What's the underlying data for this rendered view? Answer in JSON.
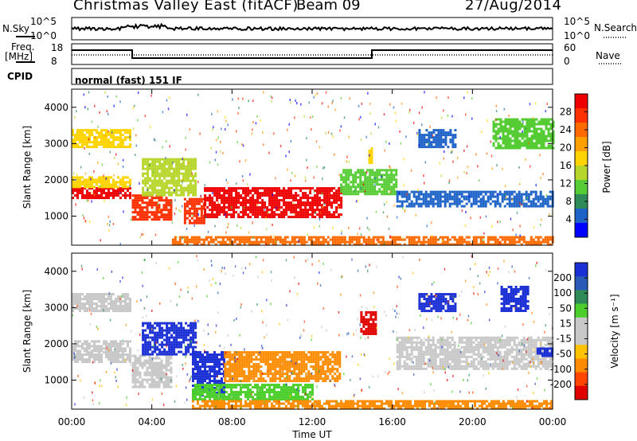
{
  "header": {
    "title": "Christmas Valley East (fitACF)",
    "beam": "Beam 09",
    "date": "27/Aug/2014"
  },
  "strip": {
    "nsky_label": "N.Sky",
    "nsearch_label": "N.Search",
    "nsky_ticks": [
      "10^5",
      "10^0"
    ],
    "freq_label_1": "Freq.",
    "freq_label_2": "[MHz]",
    "freq_ticks": [
      "18",
      "8"
    ],
    "nave_label": "Nave",
    "nave_ticks": [
      "60",
      "0"
    ],
    "cpid_label": "CPID",
    "cpid_value": "normal (fast) 151 IF"
  },
  "chart_data": [
    {
      "type": "heatmap",
      "name": "power",
      "xlabel": "",
      "ylabel": "Slant Range [km]",
      "xlim": [
        0,
        24
      ],
      "ylim": [
        200,
        4500
      ],
      "yticks": [
        "1000",
        "2000",
        "3000",
        "4000"
      ],
      "colorbar": {
        "label": "Power [dB]",
        "ticks": [
          "4",
          "8",
          "12",
          "16",
          "20",
          "24",
          "28"
        ],
        "colors": [
          "#0000ff",
          "#1e64c8",
          "#2e8b57",
          "#55cc33",
          "#b6d62b",
          "#ffd400",
          "#ffa000",
          "#ff6a00",
          "#ff3000",
          "#ee0000"
        ]
      },
      "regions": [
        {
          "t": [
            0.0,
            2.9
          ],
          "r": [
            1500,
            1800
          ],
          "level": 0.95
        },
        {
          "t": [
            0.0,
            2.9
          ],
          "r": [
            1800,
            2100
          ],
          "level": 0.55
        },
        {
          "t": [
            0.0,
            2.9
          ],
          "r": [
            2900,
            3400
          ],
          "level": 0.5
        },
        {
          "t": [
            3.0,
            5.0
          ],
          "r": [
            900,
            1600
          ],
          "level": 0.85
        },
        {
          "t": [
            3.5,
            6.2
          ],
          "r": [
            1600,
            2600
          ],
          "level": 0.4
        },
        {
          "t": [
            5.6,
            6.6
          ],
          "r": [
            800,
            1500
          ],
          "level": 0.9
        },
        {
          "t": [
            6.6,
            13.4
          ],
          "r": [
            1000,
            1800
          ],
          "level": 0.95
        },
        {
          "t": [
            13.4,
            16.2
          ],
          "r": [
            1600,
            2300
          ],
          "level": 0.35
        },
        {
          "t": [
            14.8,
            15.0
          ],
          "r": [
            2400,
            2900
          ],
          "level": 0.6
        },
        {
          "t": [
            16.2,
            24.0
          ],
          "r": [
            1300,
            1700
          ],
          "level": 0.15
        },
        {
          "t": [
            17.3,
            19.2
          ],
          "r": [
            2900,
            3400
          ],
          "level": 0.1
        },
        {
          "t": [
            21.0,
            24.0
          ],
          "r": [
            2900,
            3700
          ],
          "level": 0.3
        },
        {
          "t": [
            5.0,
            24.0
          ],
          "r": [
            250,
            450
          ],
          "level": 0.75
        }
      ]
    },
    {
      "type": "heatmap",
      "name": "velocity",
      "xlabel": "Time UT",
      "ylabel": "Slant Range [km]",
      "xlim": [
        0,
        24
      ],
      "ylim": [
        200,
        4500
      ],
      "xticks": [
        "00:00",
        "04:00",
        "08:00",
        "12:00",
        "16:00",
        "20:00",
        "00:00"
      ],
      "yticks": [
        "1000",
        "2000",
        "3000",
        "4000"
      ],
      "colorbar": {
        "label": "Velocity [m s⁻¹]",
        "ticks": [
          "200",
          "100",
          "50",
          "15",
          "-15",
          "-50",
          "-100",
          "-200"
        ],
        "colors": [
          "#1a2fd4",
          "#2a5ab8",
          "#2e8b57",
          "#4ccf2c",
          "#c8c8c8",
          "#c8c8c8",
          "#ffc300",
          "#ff8c00",
          "#ff4500",
          "#e00000"
        ]
      },
      "regions": [
        {
          "t": [
            0.0,
            2.9
          ],
          "r": [
            1500,
            1800
          ],
          "level": "gray"
        },
        {
          "t": [
            0.0,
            2.9
          ],
          "r": [
            1800,
            2100
          ],
          "level": "gray"
        },
        {
          "t": [
            0.0,
            2.9
          ],
          "r": [
            2900,
            3400
          ],
          "level": "gray"
        },
        {
          "t": [
            3.0,
            5.0
          ],
          "r": [
            800,
            1700
          ],
          "level": "gray"
        },
        {
          "t": [
            3.5,
            6.2
          ],
          "r": [
            1700,
            2600
          ],
          "level": "blue"
        },
        {
          "t": [
            6.0,
            7.6
          ],
          "r": [
            600,
            1800
          ],
          "level": "blue"
        },
        {
          "t": [
            7.6,
            13.4
          ],
          "r": [
            1000,
            1800
          ],
          "level": "orange"
        },
        {
          "t": [
            6.0,
            12.0
          ],
          "r": [
            500,
            900
          ],
          "level": "green"
        },
        {
          "t": [
            14.4,
            15.2
          ],
          "r": [
            2300,
            2900
          ],
          "level": "red"
        },
        {
          "t": [
            16.2,
            24.0
          ],
          "r": [
            1300,
            2200
          ],
          "level": "gray"
        },
        {
          "t": [
            17.3,
            19.2
          ],
          "r": [
            2900,
            3400
          ],
          "level": "blue"
        },
        {
          "t": [
            21.4,
            22.8
          ],
          "r": [
            2900,
            3600
          ],
          "level": "blue"
        },
        {
          "t": [
            23.2,
            24.0
          ],
          "r": [
            1700,
            1900
          ],
          "level": "blue"
        },
        {
          "t": [
            6.0,
            24.0
          ],
          "r": [
            250,
            450
          ],
          "level": "orange"
        }
      ]
    }
  ]
}
